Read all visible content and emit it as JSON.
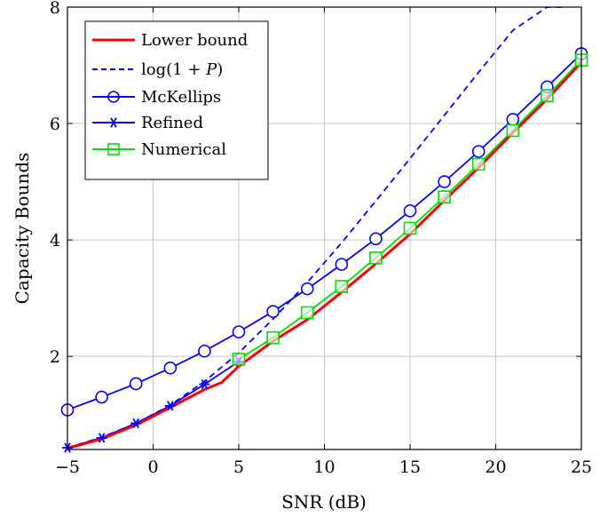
{
  "chart_data": {
    "type": "line",
    "xlabel": "SNR (dB)",
    "ylabel": "Capacity Bounds",
    "xlim": [
      -5,
      25
    ],
    "ylim": [
      0.4,
      8
    ],
    "xticks": [
      -5,
      0,
      5,
      10,
      15,
      20,
      25
    ],
    "xtick_labels": [
      "−5",
      "0",
      "5",
      "10",
      "15",
      "20",
      "25"
    ],
    "yticks": [
      2,
      4,
      6,
      8
    ],
    "ytick_labels": [
      "2",
      "4",
      "6",
      "8"
    ],
    "grid": true,
    "legend_position": "top-left",
    "series": [
      {
        "name": "Lower bound",
        "color": "#ff0000",
        "style": "solid-thick",
        "marker": "none",
        "x": [
          -5,
          -3,
          -1,
          1,
          3,
          4,
          5,
          7,
          9,
          11,
          13,
          15,
          17,
          19,
          21,
          23,
          25
        ],
        "y": [
          0.42,
          0.58,
          0.82,
          1.12,
          1.43,
          1.55,
          1.83,
          2.26,
          2.63,
          3.1,
          3.59,
          4.1,
          4.68,
          5.24,
          5.84,
          6.42,
          7.05
        ]
      },
      {
        "name": "log(1 + P)",
        "color": "#0000ff",
        "style": "dashed",
        "marker": "none",
        "x": [
          -5,
          -3,
          -1,
          1,
          3,
          5,
          7,
          9,
          11,
          13,
          15,
          17,
          19,
          21,
          23,
          24
        ],
        "y": [
          0.43,
          0.61,
          0.85,
          1.16,
          1.57,
          2.06,
          2.64,
          3.27,
          3.95,
          4.67,
          5.4,
          6.14,
          6.88,
          7.6,
          8.0,
          8.0
        ]
      },
      {
        "name": "McKellips",
        "color": "#0000ff",
        "style": "solid",
        "marker": "circle",
        "x": [
          -5,
          -3,
          -1,
          1,
          3,
          5,
          7,
          9,
          11,
          13,
          15,
          17,
          19,
          21,
          23,
          25
        ],
        "y": [
          1.08,
          1.3,
          1.53,
          1.8,
          2.09,
          2.42,
          2.77,
          3.16,
          3.58,
          4.02,
          4.5,
          5.0,
          5.52,
          6.07,
          6.63,
          7.2
        ]
      },
      {
        "name": "Refined",
        "color": "#0000ff",
        "style": "solid",
        "marker": "star",
        "x": [
          -5,
          -3,
          -1,
          1,
          3,
          5
        ],
        "y": [
          0.43,
          0.6,
          0.85,
          1.15,
          1.52,
          1.91
        ]
      },
      {
        "name": "Numerical",
        "color": "#00dd00",
        "style": "solid",
        "marker": "square",
        "x": [
          5,
          7,
          9,
          11,
          13,
          15,
          17,
          19,
          21,
          23,
          25
        ],
        "y": [
          1.95,
          2.32,
          2.75,
          3.2,
          3.69,
          4.2,
          4.74,
          5.3,
          5.88,
          6.48,
          7.09
        ]
      }
    ]
  },
  "legend": {
    "lower_bound": "Lower bound",
    "log_base": "log(1 + ",
    "log_var": "P",
    "log_close": ")",
    "mckellips": "McKellips",
    "refined": "Refined",
    "numerical": "Numerical"
  }
}
